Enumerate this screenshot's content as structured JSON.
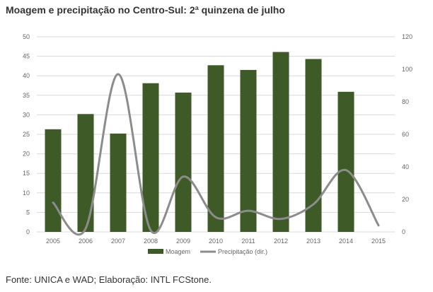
{
  "header": {
    "title": "Moagem e precipitação no Centro-Sul: 2ª quinzena de julho"
  },
  "footer": {
    "source": "Fonte: UNICA e WAD; Elaboração: INTL FCStone."
  },
  "colors": {
    "bar": "#3d5a27",
    "line": "#8c8c8c",
    "grid": "#d9d9d9",
    "text": "#666666"
  },
  "chart_data": {
    "type": "bar",
    "categories": [
      "2005",
      "2006",
      "2007",
      "2008",
      "2009",
      "2010",
      "2011",
      "2012",
      "2013",
      "2014",
      "2015"
    ],
    "series": [
      {
        "name": "Moagem",
        "type": "bar",
        "axis": "left",
        "values": [
          26.3,
          30.2,
          25.2,
          38.1,
          35.7,
          42.7,
          41.5,
          46.1,
          44.3,
          35.9,
          null
        ]
      },
      {
        "name": "Precipitação (dir.)",
        "type": "line",
        "axis": "right",
        "smooth": true,
        "values": [
          18,
          2,
          97,
          1,
          34,
          9,
          13,
          8,
          17,
          38,
          4
        ]
      }
    ],
    "yticks_left": [
      "0",
      "5",
      "10",
      "15",
      "20",
      "25",
      "30",
      "35",
      "40",
      "45",
      "50"
    ],
    "yticks_right": [
      "0",
      "20",
      "40",
      "60",
      "80",
      "100",
      "120"
    ],
    "ylim_left": [
      0,
      50
    ],
    "ylim_right": [
      0,
      120
    ],
    "grid": true,
    "legend": "bottom-center"
  }
}
